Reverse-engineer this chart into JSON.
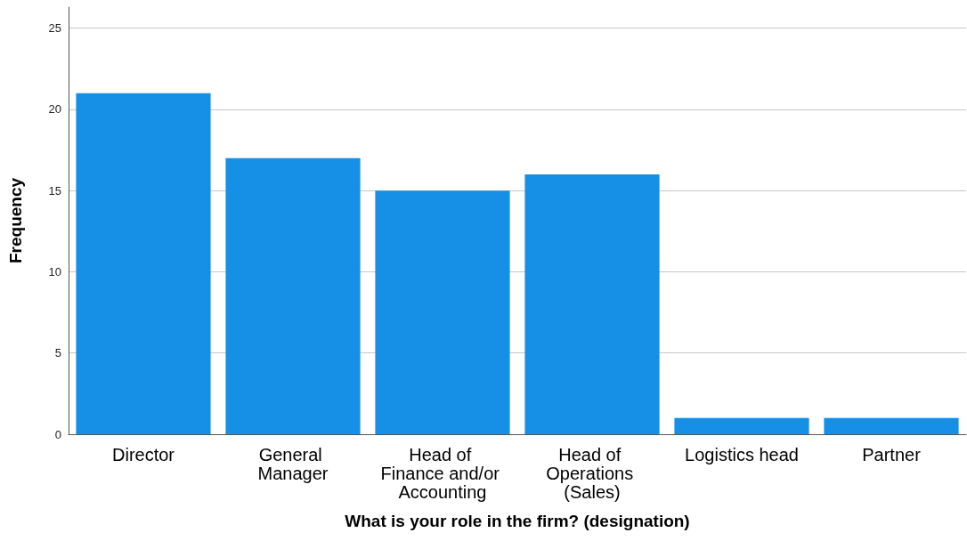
{
  "chart_data": {
    "type": "bar",
    "xlabel": "What is your role in the firm? (designation)",
    "ylabel": "Frequency",
    "categories": [
      "Director",
      "General Manager",
      "Head of Finance and/or Accounting",
      "Head of Operations (Sales)",
      "Logistics head",
      "Partner"
    ],
    "values": [
      21,
      17,
      15,
      16,
      1,
      1
    ],
    "color": "#1590e6",
    "ylim": [
      0,
      26.3
    ],
    "yticks": [
      0,
      5,
      10,
      15,
      20,
      25
    ],
    "grid": "y"
  }
}
